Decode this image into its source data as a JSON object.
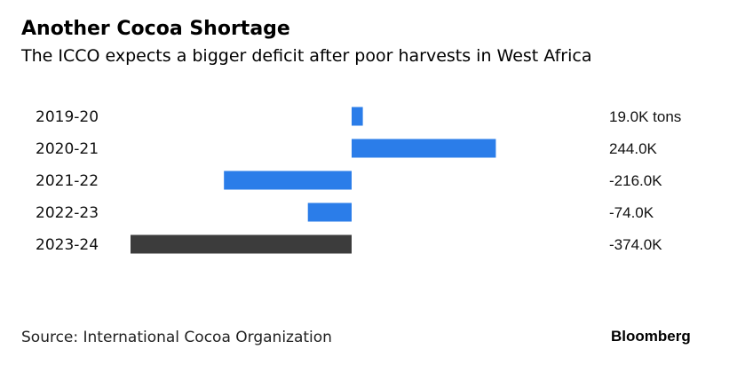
{
  "header": {
    "title": "Another Cocoa Shortage",
    "subtitle": "The ICCO expects a bigger deficit after poor harvests in West Africa"
  },
  "footer": {
    "source": "Source: International Cocoa Organization",
    "brand": "Bloomberg"
  },
  "colors": {
    "positive_bar": "#2b7de9",
    "highlight_bar": "#3c3c3c",
    "text": "#111111"
  },
  "chart_data": {
    "type": "bar",
    "orientation": "horizontal",
    "title": "Another Cocoa Shortage",
    "subtitle": "The ICCO expects a bigger deficit after poor harvests in West Africa",
    "categories": [
      "2019-20",
      "2020-21",
      "2021-22",
      "2022-23",
      "2023-24"
    ],
    "values": [
      19.0,
      244.0,
      -216.0,
      -74.0,
      -374.0
    ],
    "value_labels": [
      "19.0K tons",
      "244.0K",
      "-216.0K",
      "-74.0K",
      "-374.0K"
    ],
    "unit": "K tons",
    "highlight_category": "2023-24",
    "xlabel": "",
    "ylabel": "",
    "grid": false,
    "legend": "none"
  }
}
